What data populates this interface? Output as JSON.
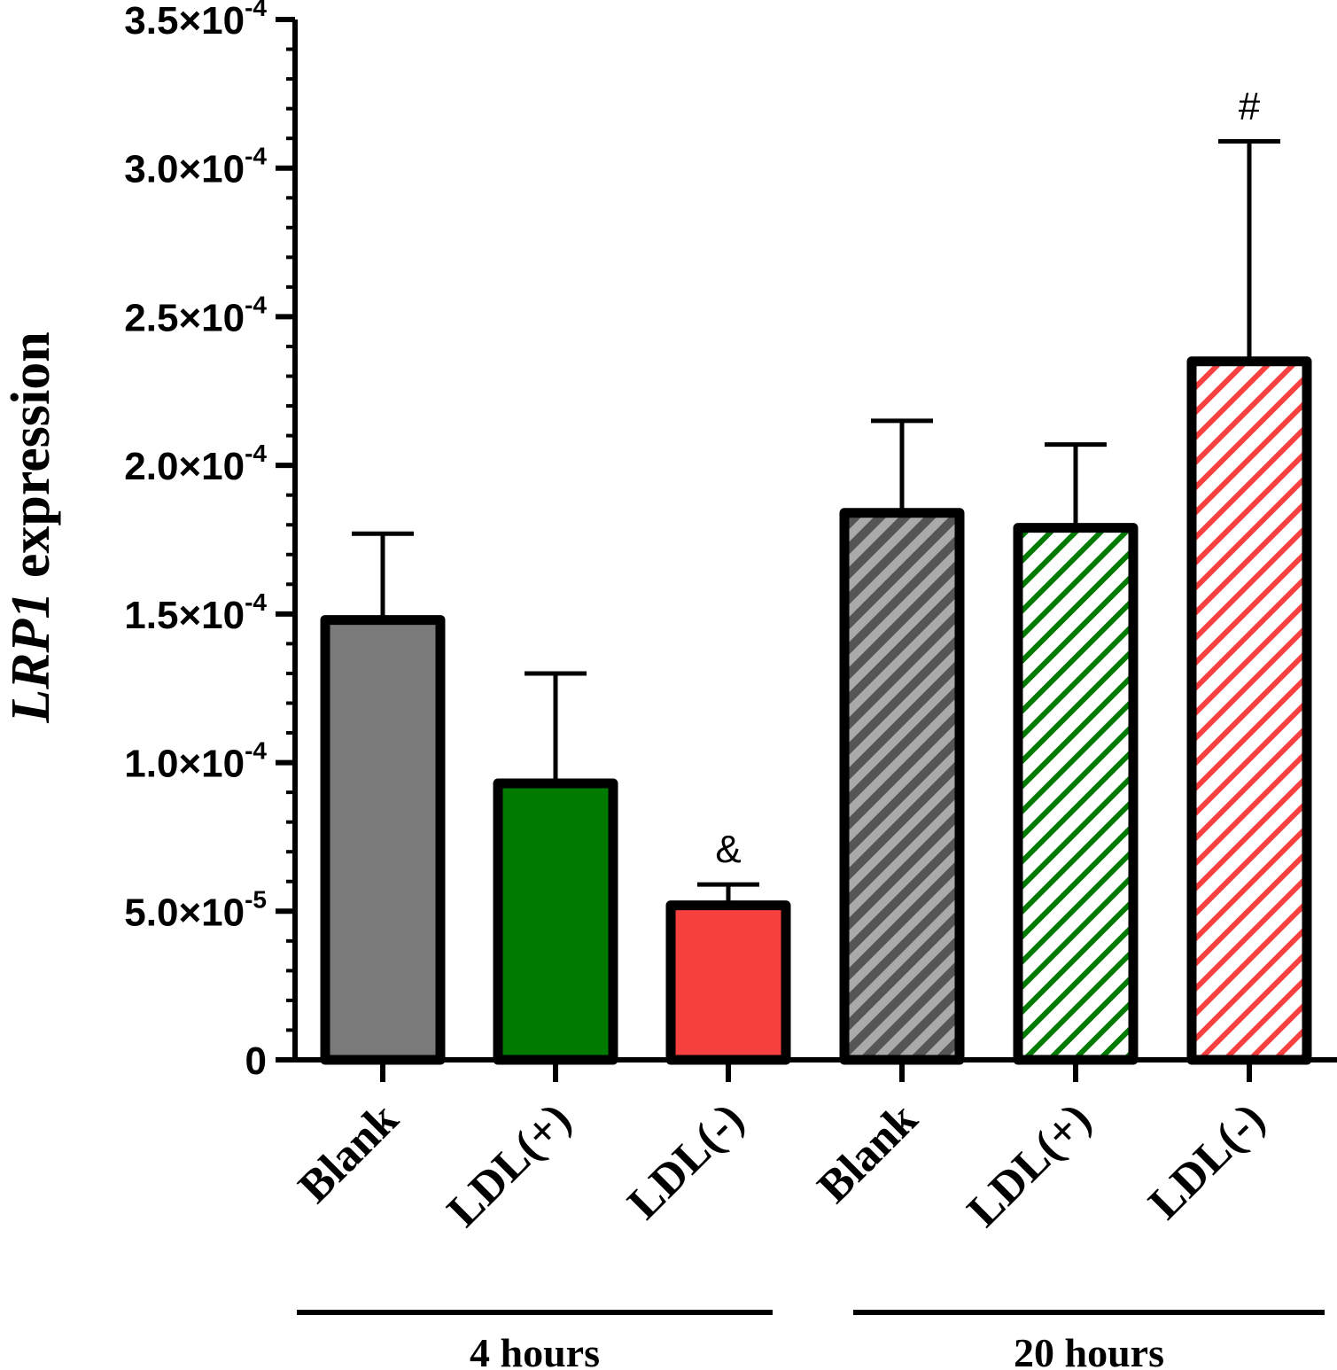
{
  "chart_data": {
    "type": "bar",
    "ylabel_italic": "LRP1",
    "ylabel_rest": " expression",
    "xlabel": "",
    "ylim": [
      0,
      0.00035
    ],
    "yticks": [
      {
        "value": 0.00035,
        "mantissa": "3.5",
        "times": "×10",
        "exp": "-4"
      },
      {
        "value": 0.0003,
        "mantissa": "3.0",
        "times": "×10",
        "exp": "-4"
      },
      {
        "value": 0.00025,
        "mantissa": "2.5",
        "times": "×10",
        "exp": "-4"
      },
      {
        "value": 0.0002,
        "mantissa": "2.0",
        "times": "×10",
        "exp": "-4"
      },
      {
        "value": 0.00015,
        "mantissa": "1.5",
        "times": "×10",
        "exp": "-4"
      },
      {
        "value": 0.0001,
        "mantissa": "1.0",
        "times": "×10",
        "exp": "-4"
      },
      {
        "value": 5e-05,
        "mantissa": "5.0",
        "times": "×10",
        "exp": "-5"
      },
      {
        "value": 0,
        "mantissa": "0",
        "times": "",
        "exp": ""
      }
    ],
    "categories": [
      "Blank",
      "LDL(+)",
      "LDL(-)",
      "Blank",
      "LDL(+)",
      "LDL(-)"
    ],
    "groups": [
      {
        "label": "4 hours",
        "members": [
          0,
          1,
          2
        ]
      },
      {
        "label": "20 hours",
        "members": [
          3,
          4,
          5
        ]
      }
    ],
    "bars": [
      {
        "value": 0.000148,
        "error": 2.9e-05,
        "color": "#7a7a7a",
        "pattern": "solid",
        "annotation": ""
      },
      {
        "value": 9.3e-05,
        "error": 3.7e-05,
        "color": "#007a00",
        "pattern": "solid",
        "annotation": ""
      },
      {
        "value": 5.2e-05,
        "error": 7e-06,
        "color": "#f74040",
        "pattern": "solid",
        "annotation": "&"
      },
      {
        "value": 0.000184,
        "error": 3.1e-05,
        "color": "#7a7a7a",
        "pattern": "hatch",
        "annotation": ""
      },
      {
        "value": 0.000179,
        "error": 2.8e-05,
        "color": "#007a00",
        "pattern": "hatch",
        "annotation": ""
      },
      {
        "value": 0.000235,
        "error": 7.4e-05,
        "color": "#f74040",
        "pattern": "hatch",
        "annotation": "#"
      }
    ],
    "grid": false,
    "legend": "none"
  }
}
